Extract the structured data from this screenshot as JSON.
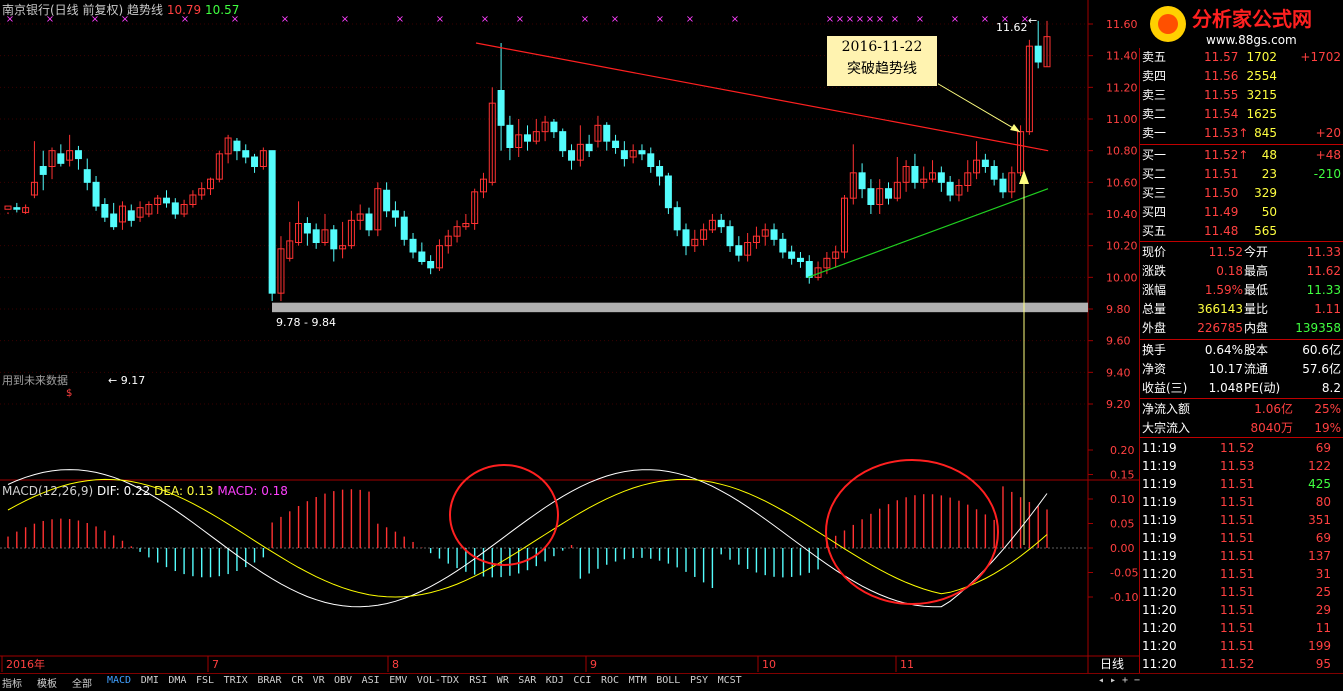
{
  "header": {
    "stock_title": "南京银行(日线 前复权) 趋势线",
    "val_red": "10.79",
    "val_green": "10.57"
  },
  "main_chart": {
    "y_ticks": [
      "11.60",
      "11.40",
      "11.20",
      "11.00",
      "10.80",
      "10.60",
      "10.40",
      "10.20",
      "10.00",
      "9.80",
      "9.60",
      "9.40",
      "9.20"
    ],
    "high_label": "11.62",
    "low_label": "9.17",
    "band_label": "9.78 - 9.84",
    "watermark_left": "用到未来数据",
    "callout_line1": "2016-11-22",
    "callout_line2": "突破趋势线"
  },
  "macd": {
    "name": "MACD(12,26,9)",
    "dif": "DIF: 0.22",
    "dea": "DEA: 0.13",
    "macd": "MACD: 0.18",
    "y_ticks": [
      "0.20",
      "0.15",
      "0.10",
      "0.05",
      "0.00",
      "-0.05",
      "-0.10"
    ]
  },
  "x_axis": {
    "labels": [
      "2016年",
      "7",
      "8",
      "9",
      "10",
      "11"
    ],
    "period": "日线"
  },
  "logo": {
    "text": "分析家公式网",
    "url": "www.88gs.com"
  },
  "orderbook": {
    "asks": [
      {
        "label": "卖五",
        "price": "11.57",
        "vol": "1702",
        "chg": "+1702"
      },
      {
        "label": "卖四",
        "price": "11.56",
        "vol": "2554",
        "chg": ""
      },
      {
        "label": "卖三",
        "price": "11.55",
        "vol": "3215",
        "chg": ""
      },
      {
        "label": "卖二",
        "price": "11.54",
        "vol": "1625",
        "chg": ""
      },
      {
        "label": "卖一",
        "price": "11.53↑",
        "vol": "845",
        "chg": "+20"
      }
    ],
    "bids": [
      {
        "label": "买一",
        "price": "11.52↑",
        "vol": "48",
        "chg": "+48"
      },
      {
        "label": "买二",
        "price": "11.51",
        "vol": "23",
        "chg": "-210"
      },
      {
        "label": "买三",
        "price": "11.50",
        "vol": "329",
        "chg": ""
      },
      {
        "label": "买四",
        "price": "11.49",
        "vol": "50",
        "chg": ""
      },
      {
        "label": "买五",
        "price": "11.48",
        "vol": "565",
        "chg": ""
      }
    ]
  },
  "quote": [
    {
      "l1": "现价",
      "v1": "11.52",
      "l2": "今开",
      "v2": "11.33"
    },
    {
      "l1": "涨跌",
      "v1": "0.18",
      "l2": "最高",
      "v2": "11.62"
    },
    {
      "l1": "涨幅",
      "v1": "1.59%",
      "l2": "最低",
      "v2": "11.33"
    },
    {
      "l1": "总量",
      "v1": "366143",
      "l2": "量比",
      "v2": "1.11"
    },
    {
      "l1": "外盘",
      "v1": "226785",
      "l2": "内盘",
      "v2": "139358"
    }
  ],
  "fund": [
    {
      "l1": "换手",
      "v1": "0.64%",
      "l2": "股本",
      "v2": "60.6亿"
    },
    {
      "l1": "净资",
      "v1": "10.17",
      "l2": "流通",
      "v2": "57.6亿"
    },
    {
      "l1": "收益(三)",
      "v1": "1.048",
      "l2": "PE(动)",
      "v2": "8.2"
    }
  ],
  "flow": [
    {
      "l": "净流入额",
      "v": "1.06亿",
      "p": "25%"
    },
    {
      "l": "大宗流入",
      "v": "8040万",
      "p": "19%"
    }
  ],
  "ticks": [
    {
      "t": "11:19",
      "p": "11.52",
      "v": "69"
    },
    {
      "t": "11:19",
      "p": "11.53",
      "v": "122"
    },
    {
      "t": "11:19",
      "p": "11.51",
      "v": "425"
    },
    {
      "t": "11:19",
      "p": "11.51",
      "v": "80"
    },
    {
      "t": "11:19",
      "p": "11.51",
      "v": "351"
    },
    {
      "t": "11:19",
      "p": "11.51",
      "v": "69"
    },
    {
      "t": "11:19",
      "p": "11.51",
      "v": "137"
    },
    {
      "t": "11:20",
      "p": "11.51",
      "v": "31"
    },
    {
      "t": "11:20",
      "p": "11.51",
      "v": "25"
    },
    {
      "t": "11:20",
      "p": "11.51",
      "v": "29"
    },
    {
      "t": "11:20",
      "p": "11.51",
      "v": "11"
    },
    {
      "t": "11:20",
      "p": "11.51",
      "v": "199"
    },
    {
      "t": "11:20",
      "p": "11.52",
      "v": "95"
    }
  ],
  "tabs": [
    "指标",
    "模板",
    "全部",
    "MACD",
    "DMI",
    "DMA",
    "FSL",
    "TRIX",
    "BRAR",
    "CR",
    "VR",
    "OBV",
    "ASI",
    "EMV",
    "VOL-TDX",
    "RSI",
    "WR",
    "SAR",
    "KDJ",
    "CCI",
    "ROC",
    "MTM",
    "BOLL",
    "PSY",
    "MCST"
  ],
  "colors": {
    "up": "#ff3232",
    "down": "#54fcfc",
    "ma_white": "#ffffff",
    "ma_yellow": "#ffff00",
    "trend_red": "#ff2020",
    "trend_green": "#20d020"
  }
}
